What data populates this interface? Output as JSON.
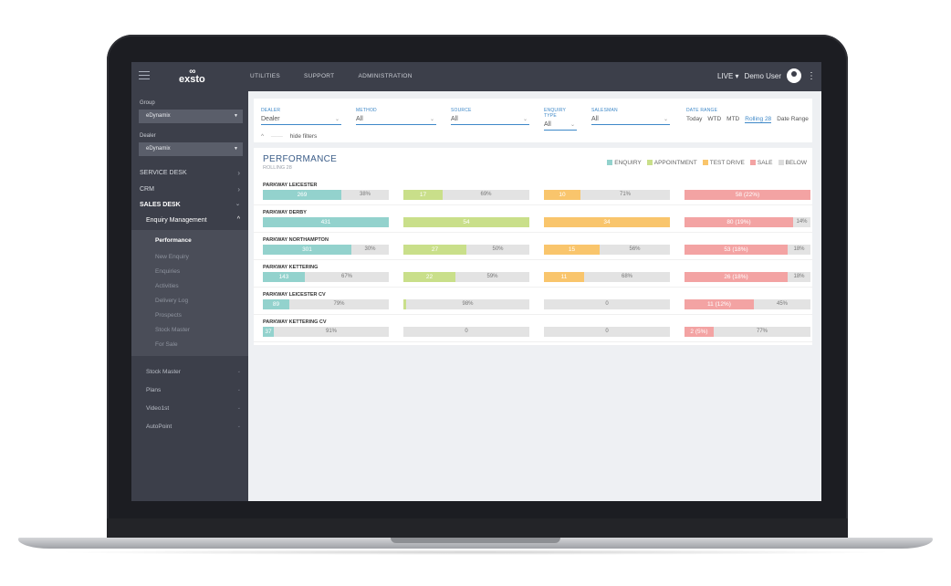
{
  "colors": {
    "enquiry": "#93d2cd",
    "appointment": "#c9df8a",
    "test_drive": "#f9c56c",
    "sale": "#f3a3a3",
    "below": "#e3e3e3",
    "accent": "#3e88c8"
  },
  "topbar": {
    "logo": "exsto",
    "nav": [
      "UTILITIES",
      "SUPPORT",
      "ADMINISTRATION"
    ],
    "env": "LIVE ▾",
    "user": "Demo User",
    "avatar_icon": "user-icon",
    "menu_icon": "kebab-icon"
  },
  "sidebar": {
    "group_label": "Group",
    "group_value": "eDynamix",
    "dealer_label": "Dealer",
    "dealer_value": "eDynamix",
    "sections": [
      "SERVICE DESK",
      "CRM",
      "SALES DESK"
    ],
    "enquiry_management": "Enquiry Management",
    "items": [
      "Performance",
      "New Enquiry",
      "Enquiries",
      "Activities",
      "Delivery Log",
      "Prospects",
      "Stock Master",
      "For Sale"
    ],
    "groups": [
      "Stock Master",
      "Plans",
      "Video1st",
      "AutoPoint"
    ]
  },
  "filters": {
    "dealer": {
      "label": "DEALER",
      "value": "Dealer"
    },
    "method": {
      "label": "METHOD",
      "value": "All"
    },
    "source": {
      "label": "SOURCE",
      "value": "All"
    },
    "enquiry_type": {
      "label": "ENQUIRY TYPE",
      "value": "All"
    },
    "salesman": {
      "label": "SALESMAN",
      "value": "All"
    },
    "date_range": {
      "label": "DATE RANGE",
      "options": [
        "Today",
        "WTD",
        "MTD",
        "Rolling 28",
        "Date Range"
      ],
      "selected": "Rolling 28"
    },
    "hide_filters": "hide filters"
  },
  "performance": {
    "title": "PERFORMANCE",
    "subtitle": "ROLLING 28",
    "legend": [
      "ENQUIRY",
      "APPOINTMENT",
      "TEST DRIVE",
      "SALE",
      "BELOW"
    ],
    "rows": [
      {
        "name": "PARKWAY LEICESTER",
        "enquiry": {
          "label": "269",
          "fill": 0.62,
          "pct": "38%"
        },
        "appointment": {
          "label": "17",
          "fill": 0.31,
          "pct": "69%"
        },
        "test_drive": {
          "label": "10",
          "fill": 0.29,
          "pct": "71%"
        },
        "sale": {
          "label": "58 (22%)",
          "fill": 1.0,
          "pct": ""
        }
      },
      {
        "name": "PARKWAY DERBY",
        "enquiry": {
          "label": "431",
          "fill": 1.0,
          "pct": ""
        },
        "appointment": {
          "label": "54",
          "fill": 1.0,
          "pct": ""
        },
        "test_drive": {
          "label": "34",
          "fill": 1.0,
          "pct": ""
        },
        "sale": {
          "label": "80 (19%)",
          "fill": 0.86,
          "pct": "14%"
        }
      },
      {
        "name": "PARKWAY NORTHAMPTON",
        "enquiry": {
          "label": "301",
          "fill": 0.7,
          "pct": "30%"
        },
        "appointment": {
          "label": "27",
          "fill": 0.5,
          "pct": "50%"
        },
        "test_drive": {
          "label": "15",
          "fill": 0.44,
          "pct": "56%"
        },
        "sale": {
          "label": "53 (18%)",
          "fill": 0.82,
          "pct": "18%"
        }
      },
      {
        "name": "PARKWAY KETTERING",
        "enquiry": {
          "label": "143",
          "fill": 0.33,
          "pct": "67%"
        },
        "appointment": {
          "label": "22",
          "fill": 0.41,
          "pct": "59%"
        },
        "test_drive": {
          "label": "11",
          "fill": 0.32,
          "pct": "68%"
        },
        "sale": {
          "label": "26 (18%)",
          "fill": 0.82,
          "pct": "18%"
        }
      },
      {
        "name": "PARKWAY LEICESTER CV",
        "enquiry": {
          "label": "89",
          "fill": 0.21,
          "pct": "79%"
        },
        "appointment": {
          "label": "",
          "fill": 0.02,
          "pct": "98%"
        },
        "test_drive": {
          "label": "",
          "fill": 0,
          "pct": "0"
        },
        "sale": {
          "label": "11 (12%)",
          "fill": 0.55,
          "pct": "45%"
        }
      },
      {
        "name": "PARKWAY KETTERING CV",
        "enquiry": {
          "label": "37",
          "fill": 0.09,
          "pct": "91%"
        },
        "appointment": {
          "label": "",
          "fill": 0,
          "pct": "0"
        },
        "test_drive": {
          "label": "",
          "fill": 0,
          "pct": "0"
        },
        "sale": {
          "label": "2 (5%)",
          "fill": 0.23,
          "pct": "77%"
        }
      }
    ]
  }
}
